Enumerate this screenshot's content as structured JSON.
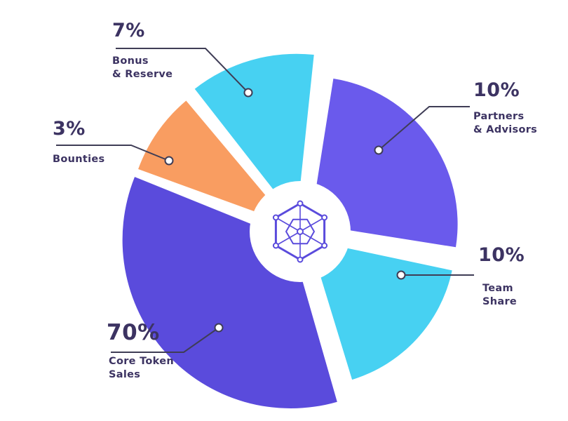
{
  "colors": {
    "background": "#FFFFFF",
    "text": "#3C3362",
    "line": "#3F3D56",
    "cyan": "#47D1F2",
    "purple_light": "#6A5AEC",
    "purple_dark": "#5A4BDC",
    "orange": "#F99D61"
  },
  "chart_data": {
    "type": "pie",
    "title": "",
    "categories": [
      "Bonus & Reserve",
      "Partners & Advisors",
      "Team Share",
      "Core Token Sales",
      "Bounties"
    ],
    "values": [
      7,
      10,
      10,
      70,
      3
    ],
    "unit": "%",
    "slice_colors": [
      "#47D1F2",
      "#6A5AEC",
      "#47D1F2",
      "#5A4BDC",
      "#F99D61"
    ],
    "labels_format": "percent-callouts",
    "legend_position": "outside-callouts",
    "style": "exploded-pie",
    "center_icon": "hexagon-network-icon"
  },
  "callouts": {
    "bonus_reserve": {
      "pct": "7%",
      "lines": [
        "Bonus",
        "& Reserve"
      ]
    },
    "bounties": {
      "pct": "3%",
      "lines": [
        "Bounties",
        ""
      ]
    },
    "partners_advisors": {
      "pct": "10%",
      "lines": [
        "Partners",
        "& Advisors"
      ]
    },
    "team_share": {
      "pct": "10%",
      "lines": [
        "Team",
        "Share"
      ]
    },
    "core_token_sales": {
      "pct": "70%",
      "lines": [
        "Core Token",
        "Sales"
      ]
    }
  }
}
